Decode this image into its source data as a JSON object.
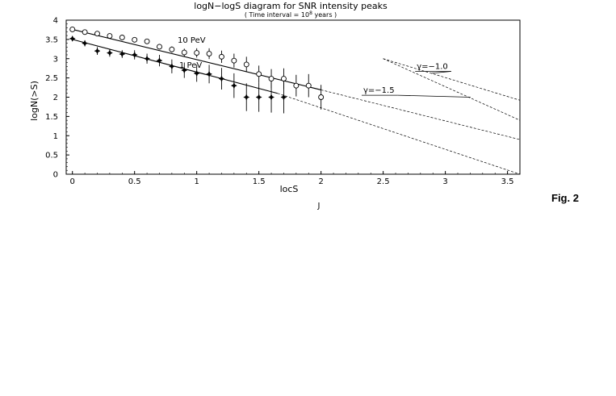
{
  "chart_data": {
    "type": "scatter",
    "title": "logN−logS diagram for SNR intensity peaks",
    "subtitle_prefix": "( Time interval = 10",
    "subtitle_exponent": "8",
    "subtitle_suffix": " years )",
    "xlabel": "locS",
    "xlabel_below": "J",
    "ylabel": "logN(>S)",
    "xlim": [
      -0.05,
      3.6
    ],
    "ylim": [
      0,
      4
    ],
    "x_ticks": [
      0,
      0.5,
      1,
      1.5,
      2,
      2.5,
      3,
      3.5
    ],
    "x_tick_labels": [
      "0",
      "0.5",
      "1",
      "1.5",
      "2",
      "2.5",
      "3",
      "3.5"
    ],
    "y_ticks": [
      0,
      0.5,
      1,
      1.5,
      2,
      2.5,
      3,
      3.5,
      4
    ],
    "y_tick_labels": [
      "0",
      "0.5",
      "1",
      "1.5",
      "2",
      "2.5",
      "3",
      "3.5",
      "4"
    ],
    "series": [
      {
        "name": "10 PeV",
        "marker": "open-circle",
        "x": [
          0,
          0.1,
          0.2,
          0.3,
          0.4,
          0.5,
          0.6,
          0.7,
          0.8,
          0.9,
          1.0,
          1.1,
          1.2,
          1.3,
          1.4,
          1.5,
          1.6,
          1.7,
          1.8,
          1.9,
          2.0
        ],
        "y": [
          3.76,
          3.69,
          3.65,
          3.59,
          3.55,
          3.49,
          3.45,
          3.31,
          3.24,
          3.16,
          3.15,
          3.13,
          3.05,
          2.95,
          2.85,
          2.6,
          2.48,
          2.48,
          2.3,
          2.3,
          2.0
        ],
        "err": [
          0.02,
          0.03,
          0.03,
          0.04,
          0.05,
          0.05,
          0.06,
          0.07,
          0.08,
          0.1,
          0.12,
          0.14,
          0.16,
          0.18,
          0.2,
          0.22,
          0.25,
          0.27,
          0.28,
          0.3,
          0.32
        ]
      },
      {
        "name": "1 PeV",
        "marker": "filled-star",
        "x": [
          0,
          0.1,
          0.2,
          0.3,
          0.4,
          0.5,
          0.6,
          0.7,
          0.8,
          0.9,
          1.0,
          1.1,
          1.2,
          1.3,
          1.4,
          1.5,
          1.6,
          1.7
        ],
        "y": [
          3.52,
          3.4,
          3.2,
          3.15,
          3.12,
          3.1,
          3.0,
          2.95,
          2.8,
          2.7,
          2.62,
          2.6,
          2.48,
          2.3,
          2.0,
          2.0,
          2.0,
          2.0
        ],
        "err": [
          0.05,
          0.08,
          0.1,
          0.1,
          0.1,
          0.12,
          0.13,
          0.15,
          0.18,
          0.2,
          0.22,
          0.24,
          0.28,
          0.32,
          0.36,
          0.38,
          0.4,
          0.42
        ]
      }
    ],
    "fit_lines": [
      {
        "series": "10 PeV",
        "solid": [
          [
            0,
            3.76
          ],
          [
            2.0,
            2.19
          ]
        ],
        "dashed": [
          [
            2.0,
            2.19
          ],
          [
            3.6,
            0.9
          ]
        ]
      },
      {
        "series": "1 PeV",
        "solid": [
          [
            0,
            3.5
          ],
          [
            1.65,
            2.1
          ]
        ],
        "dashed": [
          [
            1.65,
            2.1
          ],
          [
            3.6,
            0.0
          ]
        ]
      }
    ],
    "reference_lines": [
      {
        "label": "γ=−1.0",
        "points": [
          [
            2.5,
            3.0
          ],
          [
            3.6,
            1.92
          ]
        ],
        "label_at": [
          2.77,
          2.67
        ]
      },
      {
        "label": "γ=−1.5",
        "points": [
          [
            2.5,
            3.0
          ],
          [
            3.6,
            1.4
          ]
        ],
        "label_at": [
          2.34,
          2.05
        ]
      }
    ]
  },
  "fig_label": "Fig. 2"
}
